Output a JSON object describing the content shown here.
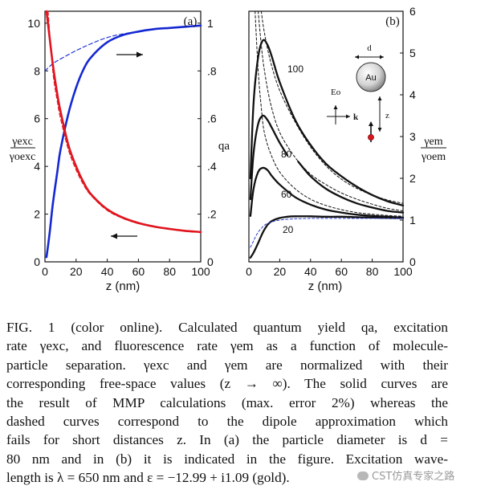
{
  "figure": {
    "panel_a": {
      "label": "(a)",
      "x_ticks": [
        "0",
        "20",
        "40",
        "60",
        "80",
        "100"
      ],
      "xlabel": "z (nm)",
      "y_left_ticks": [
        "0",
        "2",
        "4",
        "6",
        "8",
        "10"
      ],
      "y_right_ticks": [
        "0",
        ".2",
        ".4",
        ".6",
        ".8",
        "1"
      ],
      "y_left_label_num": "γexc",
      "y_left_label_den": "γoexc",
      "y_right_label": "qa"
    },
    "panel_b": {
      "label": "(b)",
      "x_ticks": [
        "0",
        "20",
        "40",
        "60",
        "80",
        "100"
      ],
      "xlabel": "z (nm)",
      "y_ticks": [
        "0",
        "1",
        "2",
        "3",
        "4",
        "5",
        "6"
      ],
      "y_label_num": "γem",
      "y_label_den": "γoem",
      "curve_labels": [
        "100",
        "80",
        "60",
        "20"
      ],
      "inset": {
        "d": "d",
        "particle": "Au",
        "field": "Eo",
        "k": "k",
        "z": "z"
      }
    }
  },
  "chart_data": [
    {
      "type": "line",
      "panel": "(a)",
      "xlabel": "z (nm)",
      "xlim": [
        0,
        100
      ],
      "ylim_left": [
        0,
        10.5
      ],
      "ylim_right": [
        0,
        1.05
      ],
      "series": [
        {
          "axis": "right",
          "style": "solid",
          "color": "#1428d2",
          "x": [
            1,
            3,
            5,
            8,
            10,
            15,
            20,
            25,
            30,
            40,
            50,
            60,
            70,
            80,
            90,
            100
          ],
          "y": [
            0.02,
            0.12,
            0.24,
            0.38,
            0.47,
            0.62,
            0.73,
            0.81,
            0.86,
            0.92,
            0.95,
            0.965,
            0.975,
            0.98,
            0.985,
            0.99
          ]
        },
        {
          "axis": "right",
          "style": "dashed",
          "color": "#1428d2",
          "x": [
            0,
            5,
            10,
            20,
            30,
            40,
            50,
            60,
            70,
            80,
            90,
            100
          ],
          "y": [
            0.8,
            0.83,
            0.85,
            0.885,
            0.915,
            0.94,
            0.955,
            0.965,
            0.975,
            0.98,
            0.985,
            0.99
          ]
        },
        {
          "axis": "left",
          "style": "solid",
          "color": "#e0141e",
          "x": [
            1,
            3,
            5,
            8,
            10,
            15,
            20,
            25,
            30,
            40,
            50,
            60,
            70,
            80,
            90,
            100
          ],
          "y": [
            10.5,
            9.4,
            8.3,
            7.0,
            6.3,
            4.9,
            4.0,
            3.3,
            2.8,
            2.2,
            1.85,
            1.63,
            1.48,
            1.38,
            1.3,
            1.25
          ]
        },
        {
          "axis": "left",
          "style": "dashed",
          "color": "#e0141e",
          "x": [
            2,
            5,
            8,
            10,
            15,
            20,
            25,
            30,
            40,
            50,
            60,
            70,
            80,
            90,
            100
          ],
          "y": [
            10.5,
            8.0,
            6.7,
            6.0,
            4.7,
            3.85,
            3.2,
            2.75,
            2.15,
            1.82,
            1.6,
            1.46,
            1.36,
            1.29,
            1.24
          ]
        }
      ],
      "annotations": [
        {
          "type": "arrow",
          "direction": "right",
          "x": 42,
          "y": 8.9
        },
        {
          "type": "arrow",
          "direction": "left",
          "x": 42,
          "y": 1.05
        }
      ]
    },
    {
      "type": "line",
      "panel": "(b)",
      "xlabel": "z (nm)",
      "xlim": [
        0,
        100
      ],
      "ylim": [
        0,
        6
      ],
      "series": [
        {
          "name": "100",
          "style": "solid",
          "x": [
            1,
            3,
            6,
            9,
            12,
            15,
            20,
            30,
            40,
            50,
            60,
            70,
            80,
            90,
            100
          ],
          "y": [
            2.0,
            3.8,
            4.9,
            5.3,
            5.2,
            4.9,
            4.3,
            3.4,
            2.8,
            2.35,
            2.05,
            1.8,
            1.6,
            1.45,
            1.35
          ]
        },
        {
          "name": "80",
          "style": "solid",
          "x": [
            1,
            3,
            6,
            9,
            12,
            15,
            20,
            25
          ],
          "y": [
            1.5,
            2.6,
            3.3,
            3.5,
            3.4,
            3.2,
            2.85,
            2.55
          ]
        },
        {
          "name": "80",
          "style": "solid",
          "x": [
            32,
            40,
            50,
            60,
            70,
            80,
            90,
            100
          ],
          "y": [
            2.4,
            2.05,
            1.75,
            1.55,
            1.4,
            1.3,
            1.22,
            1.18
          ]
        },
        {
          "name": "60",
          "style": "solid",
          "x": [
            1,
            3,
            6,
            9,
            12,
            15,
            20,
            30,
            40,
            50,
            60,
            70,
            80,
            90,
            100
          ],
          "y": [
            1.1,
            1.75,
            2.15,
            2.25,
            2.2,
            2.05,
            1.85,
            1.55,
            1.37,
            1.25,
            1.18,
            1.13,
            1.1,
            1.08,
            1.06
          ]
        },
        {
          "name": "20",
          "style": "solid",
          "x": [
            1,
            3,
            6,
            9,
            12,
            15,
            20,
            25,
            30,
            40,
            50,
            60,
            70,
            80,
            90,
            100
          ],
          "y": [
            0.1,
            0.22,
            0.45,
            0.7,
            0.88,
            0.98,
            1.05,
            1.08,
            1.09,
            1.09,
            1.08,
            1.08,
            1.07,
            1.06,
            1.05,
            1.05
          ]
        },
        {
          "style": "dashed",
          "x": [
            1,
            3,
            5,
            8,
            12,
            20,
            30,
            40,
            50,
            60,
            70,
            80,
            90,
            100
          ],
          "y": [
            0.35,
            0.5,
            0.65,
            0.8,
            0.92,
            1.0,
            1.03,
            1.04,
            1.04,
            1.04,
            1.04,
            1.04,
            1.04,
            1.04
          ]
        },
        {
          "style": "dashed",
          "x": [
            4,
            6,
            8,
            10,
            14,
            20,
            30,
            40,
            50,
            60,
            70,
            80,
            90,
            100
          ],
          "y": [
            6.0,
            4.6,
            3.7,
            3.1,
            2.6,
            2.15,
            1.75,
            1.5,
            1.35,
            1.25,
            1.18,
            1.14,
            1.11,
            1.09
          ]
        },
        {
          "style": "dashed",
          "x": [
            6,
            8,
            10,
            14,
            20,
            30,
            40,
            50,
            60,
            70,
            80,
            90,
            100
          ],
          "y": [
            6.0,
            5.2,
            4.6,
            3.8,
            3.1,
            2.5,
            2.1,
            1.85,
            1.65,
            1.5,
            1.38,
            1.28,
            1.22
          ]
        },
        {
          "style": "dashed",
          "x": [
            8,
            10,
            14,
            20,
            30,
            40,
            50,
            60,
            70,
            80,
            90,
            100
          ],
          "y": [
            6.0,
            5.5,
            4.8,
            4.1,
            3.35,
            2.75,
            2.3,
            1.98,
            1.76,
            1.6,
            1.48,
            1.4
          ]
        }
      ]
    }
  ],
  "caption": {
    "lines": [
      "FIG. 1 (color online).   Calculated quantum yield qa, excitation",
      "rate γexc, and fluorescence rate γem as a function of molecule-",
      "particle separation.   γexc and γem are normalized with their",
      "corresponding free-space values (z → ∞). The solid curves are",
      "the result of MMP calculations (max. error 2%) whereas the",
      "dashed curves correspond to the dipole approximation which",
      "fails for short distances z. In (a) the particle diameter is d =",
      "80 nm and in (b) it is indicated in the figure. Excitation wave-",
      "length is λ = 650 nm and ε = −12.99 + i1.09 (gold)."
    ]
  },
  "watermark": "CST仿真专家之路"
}
